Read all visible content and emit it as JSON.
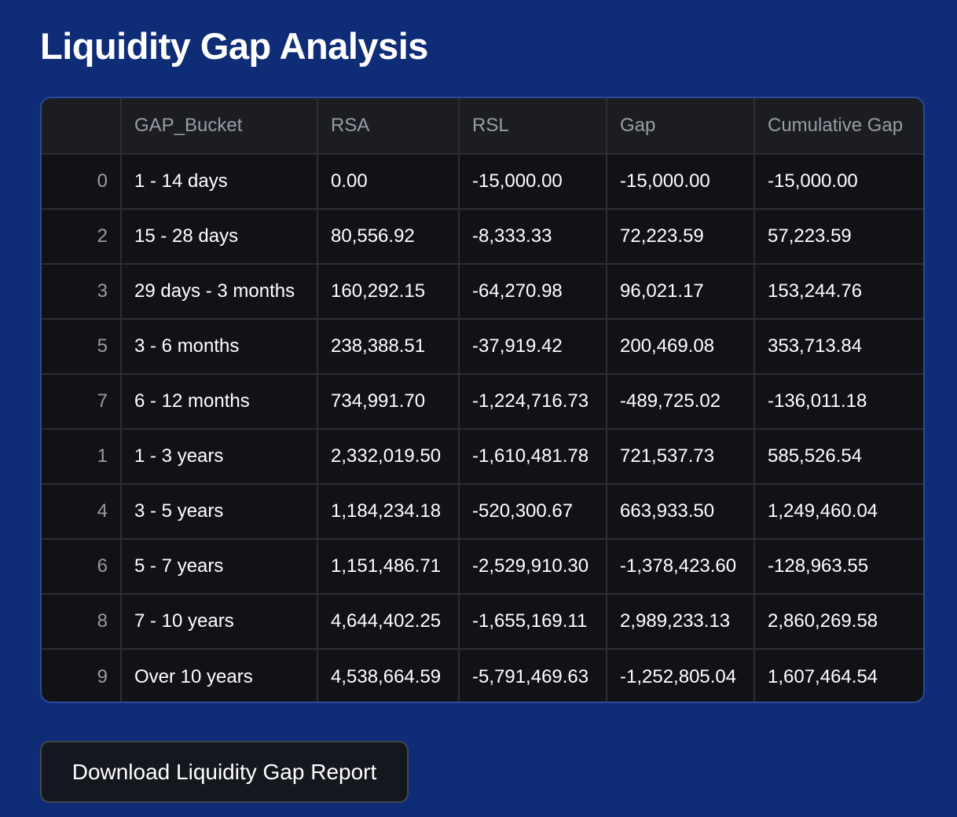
{
  "page": {
    "title": "Liquidity Gap Analysis",
    "colors": {
      "background": "#0f2c76",
      "table_header_bg": "#1b1d23",
      "table_body_bg": "#111216",
      "table_border": "#2a4a9a",
      "grid_line": "#2c2e34",
      "header_text": "#9a9ca3",
      "body_text": "#ffffff",
      "button_bg": "#15171e"
    }
  },
  "table": {
    "columns": [
      "",
      "GAP_Bucket",
      "RSA",
      "RSL",
      "Gap",
      "Cumulative Gap"
    ],
    "rows": [
      {
        "index": "0",
        "bucket": "1 - 14 days",
        "rsa": "0.00",
        "rsl": "-15,000.00",
        "gap": "-15,000.00",
        "cumulative_gap": "-15,000.00"
      },
      {
        "index": "2",
        "bucket": "15 - 28 days",
        "rsa": "80,556.92",
        "rsl": "-8,333.33",
        "gap": "72,223.59",
        "cumulative_gap": "57,223.59"
      },
      {
        "index": "3",
        "bucket": "29 days - 3 months",
        "rsa": "160,292.15",
        "rsl": "-64,270.98",
        "gap": "96,021.17",
        "cumulative_gap": "153,244.76"
      },
      {
        "index": "5",
        "bucket": "3 - 6 months",
        "rsa": "238,388.51",
        "rsl": "-37,919.42",
        "gap": "200,469.08",
        "cumulative_gap": "353,713.84"
      },
      {
        "index": "7",
        "bucket": "6 - 12 months",
        "rsa": "734,991.70",
        "rsl": "-1,224,716.73",
        "gap": "-489,725.02",
        "cumulative_gap": "-136,011.18"
      },
      {
        "index": "1",
        "bucket": "1 - 3 years",
        "rsa": "2,332,019.50",
        "rsl": "-1,610,481.78",
        "gap": "721,537.73",
        "cumulative_gap": "585,526.54"
      },
      {
        "index": "4",
        "bucket": "3 - 5 years",
        "rsa": "1,184,234.18",
        "rsl": "-520,300.67",
        "gap": "663,933.50",
        "cumulative_gap": "1,249,460.04"
      },
      {
        "index": "6",
        "bucket": "5 - 7 years",
        "rsa": "1,151,486.71",
        "rsl": "-2,529,910.30",
        "gap": "-1,378,423.60",
        "cumulative_gap": "-128,963.55"
      },
      {
        "index": "8",
        "bucket": "7 - 10 years",
        "rsa": "4,644,402.25",
        "rsl": "-1,655,169.11",
        "gap": "2,989,233.13",
        "cumulative_gap": "2,860,269.58"
      },
      {
        "index": "9",
        "bucket": "Over 10 years",
        "rsa": "4,538,664.59",
        "rsl": "-5,791,469.63",
        "gap": "-1,252,805.04",
        "cumulative_gap": "1,607,464.54"
      }
    ]
  },
  "actions": {
    "download_label": "Download Liquidity Gap Report"
  }
}
